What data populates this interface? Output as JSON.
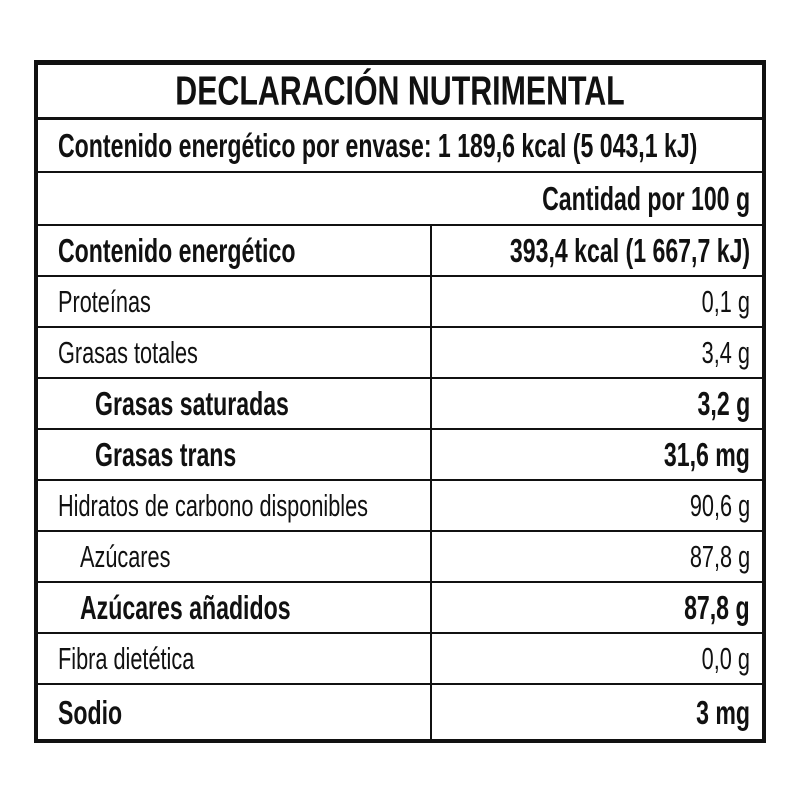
{
  "title": "DECLARACIÓN NUTRIMENTAL",
  "per_package": "Contenido energético por envase: 1 189,6 kcal (5 043,1 kJ)",
  "column_header": "Cantidad por 100 g",
  "rows": [
    {
      "label": "Contenido energético",
      "value": "393,4 kcal (1 667,7 kJ)",
      "bold": true,
      "indent": 0
    },
    {
      "label": "Proteínas",
      "value": "0,1 g",
      "bold": false,
      "indent": 0
    },
    {
      "label": "Grasas totales",
      "value": "3,4 g",
      "bold": false,
      "indent": 0
    },
    {
      "label": "Grasas saturadas",
      "value": "3,2 g",
      "bold": true,
      "indent": 2
    },
    {
      "label": "Grasas trans",
      "value": "31,6 mg",
      "bold": true,
      "indent": 2
    },
    {
      "label": "Hidratos de carbono disponibles",
      "value": "90,6 g",
      "bold": false,
      "indent": 0
    },
    {
      "label": "Azúcares",
      "value": "87,8 g",
      "bold": false,
      "indent": 1
    },
    {
      "label": "Azúcares añadidos",
      "value": "87,8 g",
      "bold": true,
      "indent": 1
    },
    {
      "label": "Fibra dietética",
      "value": "0,0 g",
      "bold": false,
      "indent": 0
    },
    {
      "label": "Sodio",
      "value": "3 mg",
      "bold": true,
      "indent": 0
    }
  ]
}
